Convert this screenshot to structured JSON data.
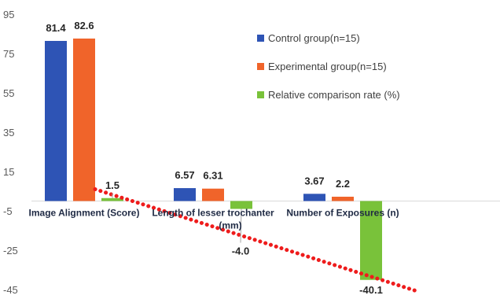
{
  "chart_data": {
    "type": "bar",
    "title": "",
    "xlabel": "",
    "ylabel": "",
    "ylim": [
      -45,
      95
    ],
    "yticks": [
      95,
      75,
      55,
      35,
      15,
      -5,
      -25,
      -45
    ],
    "categories": [
      "Image Alignment  (Score)",
      "Length of lesser trochanter (mm)",
      "Number of Exposures (n)"
    ],
    "series": [
      {
        "name": "Control group(n=15)",
        "color": "#2e54b5",
        "values": [
          81.4,
          6.57,
          3.67
        ],
        "labels": [
          "81.4",
          "6.57",
          "3.67"
        ]
      },
      {
        "name": "Experimental group(n=15)",
        "color": "#f0642a",
        "values": [
          82.6,
          6.31,
          2.2
        ],
        "labels": [
          "82.6",
          "6.31",
          "2.2"
        ]
      },
      {
        "name": "Relative comparison rate (%)",
        "color": "#79c23a",
        "values": [
          1.5,
          -4.0,
          -40.1
        ],
        "labels": [
          "1.5",
          "-4.0",
          "-40.1"
        ]
      }
    ],
    "trendline": {
      "style": "dotted",
      "color": "#ee1c1c",
      "start": 6,
      "end": -46
    },
    "legend_position": "top-right",
    "grid": false
  }
}
